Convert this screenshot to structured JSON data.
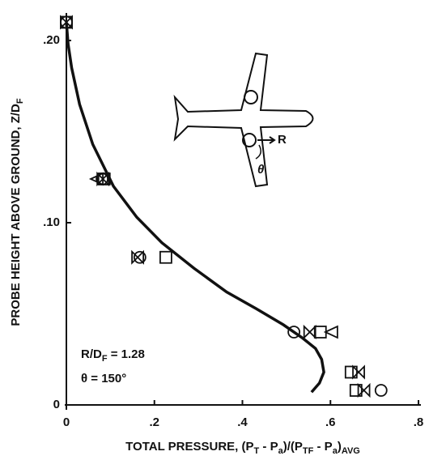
{
  "chart_data": {
    "type": "scatter",
    "x_label": [
      "TOTAL PRESSURE, (P",
      "T",
      " - P",
      "a",
      ")/(P",
      "TF",
      " - P",
      "a",
      ")",
      "AVG"
    ],
    "y_label": [
      "PROBE HEIGHT ABOVE GROUND, Z/D",
      "F"
    ],
    "annotations": {
      "ratio": [
        "R/D",
        "F",
        " = 1.28"
      ],
      "angle": "θ = 150°",
      "diagram_r": "R",
      "diagram_theta": "θ"
    },
    "xlim": [
      0,
      0.8
    ],
    "ylim": [
      0,
      0.21
    ],
    "xticks": [
      0,
      {
        "value": 0.2,
        "label": ".2"
      },
      {
        "value": 0.4,
        "label": ".4"
      },
      {
        "value": 0.6,
        "label": ".6"
      },
      {
        "value": 0.8,
        "label": ".8"
      }
    ],
    "yticks": [
      0,
      {
        "value": 0.1,
        "label": ".10"
      },
      {
        "value": 0.2,
        "label": ".20"
      }
    ],
    "color": "#111111",
    "markers": [
      {
        "marker": "circle",
        "x": [
          0,
          0.081,
          0.167,
          0.517,
          0.715
        ],
        "y": [
          0.21,
          0.124,
          0.081,
          0.04,
          0.008
        ]
      },
      {
        "marker": "square",
        "x": [
          0,
          0.086,
          0.226,
          0.577,
          0.647,
          0.658
        ],
        "y": [
          0.21,
          0.124,
          0.081,
          0.04,
          0.018,
          0.008
        ]
      },
      {
        "marker": "bowtie",
        "x": [
          0,
          0.083,
          0.162,
          0.553,
          0.664,
          0.676
        ],
        "y": [
          0.21,
          0.124,
          0.081,
          0.04,
          0.018,
          0.008
        ]
      },
      {
        "marker": "triangle-left",
        "x": [
          0.07,
          0.603
        ],
        "y": [
          0.124,
          0.04
        ]
      }
    ],
    "curve": {
      "x": [
        0,
        0.004,
        0.012,
        0.03,
        0.06,
        0.107,
        0.16,
        0.217,
        0.29,
        0.364,
        0.43,
        0.493,
        0.535,
        0.566,
        0.58,
        0.585,
        0.575,
        0.557
      ],
      "y": [
        0.21,
        0.198,
        0.185,
        0.165,
        0.143,
        0.12,
        0.103,
        0.089,
        0.075,
        0.062,
        0.053,
        0.044,
        0.037,
        0.031,
        0.025,
        0.018,
        0.012,
        0.007
      ]
    }
  }
}
